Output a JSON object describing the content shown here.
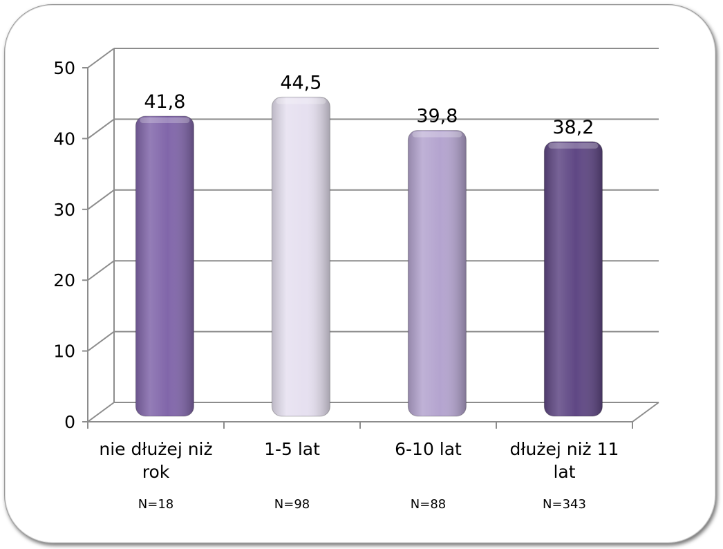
{
  "chart_data": {
    "type": "bar",
    "categories": [
      [
        "nie dłużej niż",
        "rok"
      ],
      [
        "1-5 lat"
      ],
      [
        "6-10 lat"
      ],
      [
        "dłużej niż 11",
        "lat"
      ]
    ],
    "sample_sizes": [
      "N=18",
      "N=98",
      "N=88",
      "N=343"
    ],
    "values": [
      41.8,
      44.5,
      39.8,
      38.2
    ],
    "value_labels": [
      "41,8",
      "44,5",
      "39,8",
      "38,2"
    ],
    "y_ticks": [
      "0",
      "10",
      "20",
      "30",
      "40",
      "50"
    ],
    "ylim": [
      0,
      50
    ],
    "grid": true,
    "bar_colors": [
      "#8166aa",
      "#e6e0f0",
      "#b4a4cf",
      "#5f4784"
    ]
  }
}
